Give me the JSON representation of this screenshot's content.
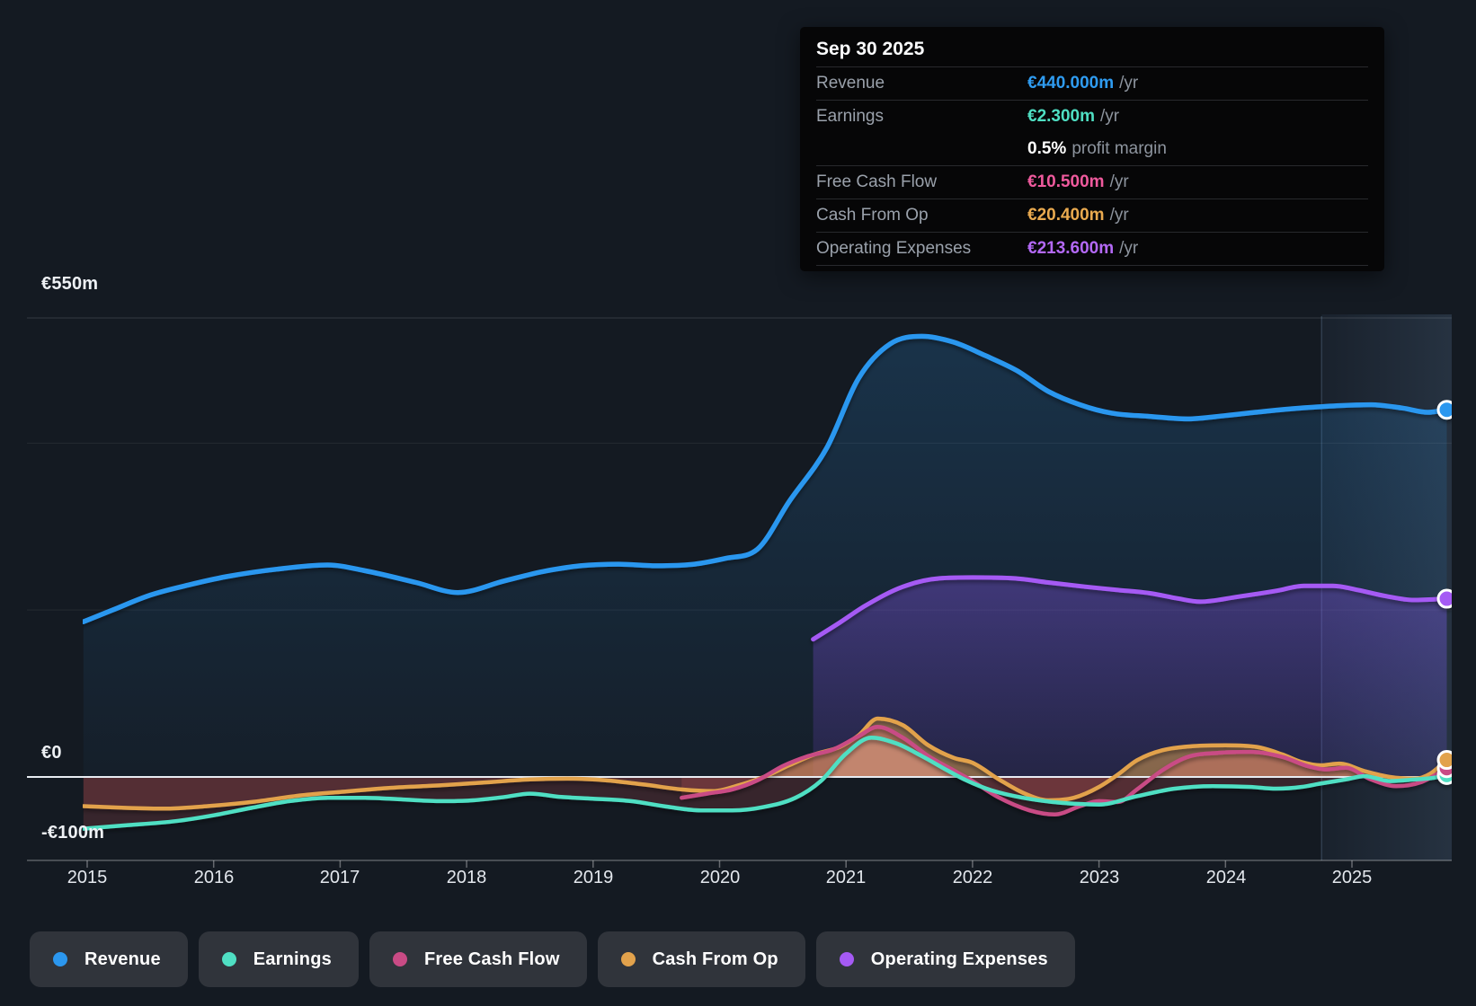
{
  "tooltip": {
    "date": "Sep 30 2025",
    "rows": [
      {
        "label": "Revenue",
        "value": "€440.000m",
        "suffix": "/yr",
        "color": "#2f9cf1"
      },
      {
        "label": "Earnings",
        "value": "€2.300m",
        "suffix": "/yr",
        "color": "#4fdfc3"
      },
      {
        "label": "",
        "value": "0.5%",
        "suffix": "profit margin",
        "color": "#ffffff"
      },
      {
        "label": "Free Cash Flow",
        "value": "€10.500m",
        "suffix": "/yr",
        "color": "#ef5a9d"
      },
      {
        "label": "Cash From Op",
        "value": "€20.400m",
        "suffix": "/yr",
        "color": "#eaaa4f"
      },
      {
        "label": "Operating Expenses",
        "value": "€213.600m",
        "suffix": "/yr",
        "color": "#b469f7"
      }
    ]
  },
  "axis": {
    "y_labels": [
      {
        "text": "€550m",
        "value": 550
      },
      {
        "text": "€0",
        "value": 0
      },
      {
        "text": "-€100m",
        "value": -100
      }
    ],
    "x_ticks": [
      "2015",
      "2016",
      "2017",
      "2018",
      "2019",
      "2020",
      "2021",
      "2022",
      "2023",
      "2024",
      "2025"
    ]
  },
  "legend": {
    "items": [
      {
        "label": "Revenue",
        "color": "#2b97ef"
      },
      {
        "label": "Earnings",
        "color": "#4fdfc3"
      },
      {
        "label": "Free Cash Flow",
        "color": "#c94b85"
      },
      {
        "label": "Cash From Op",
        "color": "#e2a24c"
      },
      {
        "label": "Operating Expenses",
        "color": "#a55af4"
      }
    ]
  },
  "chart_data": {
    "type": "area",
    "title": "Earnings and revenue history to Sep 30 2025",
    "x_unit": "year",
    "x_range": [
      2014.97,
      2025.78
    ],
    "ylim_m": [
      -100,
      550
    ],
    "gridline_values_m": [
      550,
      400,
      200
    ],
    "zero_line_m": 0,
    "bottom_line_m": -100,
    "highlight_band_start": 2024.76,
    "marker_date": "Sep 30 2025",
    "series": [
      {
        "name": "Revenue",
        "color": "#2b97ef",
        "end_value_m": 440.0,
        "points": [
          [
            2014.97,
            186
          ],
          [
            2015.2,
            200
          ],
          [
            2015.5,
            218
          ],
          [
            2015.8,
            230
          ],
          [
            2016.1,
            240
          ],
          [
            2016.5,
            249
          ],
          [
            2016.9,
            254
          ],
          [
            2017.2,
            247
          ],
          [
            2017.6,
            233
          ],
          [
            2017.93,
            221
          ],
          [
            2018.3,
            235
          ],
          [
            2018.6,
            246
          ],
          [
            2018.9,
            253
          ],
          [
            2019.2,
            255
          ],
          [
            2019.5,
            253
          ],
          [
            2019.8,
            255
          ],
          [
            2020.05,
            262
          ],
          [
            2020.3,
            273
          ],
          [
            2020.55,
            330
          ],
          [
            2020.85,
            395
          ],
          [
            2021.1,
            478
          ],
          [
            2021.35,
            519
          ],
          [
            2021.6,
            528
          ],
          [
            2021.85,
            521
          ],
          [
            2022.1,
            505
          ],
          [
            2022.35,
            487
          ],
          [
            2022.6,
            462
          ],
          [
            2022.85,
            446
          ],
          [
            2023.1,
            436
          ],
          [
            2023.4,
            432
          ],
          [
            2023.7,
            429
          ],
          [
            2024.0,
            433
          ],
          [
            2024.3,
            438
          ],
          [
            2024.6,
            442
          ],
          [
            2024.9,
            445
          ],
          [
            2025.15,
            446
          ],
          [
            2025.4,
            442
          ],
          [
            2025.6,
            437
          ],
          [
            2025.75,
            440
          ]
        ]
      },
      {
        "name": "Operating Expenses",
        "color": "#a55af4",
        "end_value_m": 213.6,
        "points": [
          [
            2020.74,
            165
          ],
          [
            2020.95,
            185
          ],
          [
            2021.15,
            205
          ],
          [
            2021.45,
            228
          ],
          [
            2021.74,
            238
          ],
          [
            2022.0,
            239
          ],
          [
            2022.33,
            238
          ],
          [
            2022.6,
            233
          ],
          [
            2022.89,
            228
          ],
          [
            2023.15,
            224
          ],
          [
            2023.41,
            220
          ],
          [
            2023.62,
            214
          ],
          [
            2023.8,
            210
          ],
          [
            2024.1,
            216
          ],
          [
            2024.4,
            223
          ],
          [
            2024.62,
            229
          ],
          [
            2024.85,
            229
          ],
          [
            2025.05,
            224
          ],
          [
            2025.26,
            217
          ],
          [
            2025.49,
            212
          ],
          [
            2025.75,
            213.6
          ]
        ]
      },
      {
        "name": "Cash From Op",
        "color": "#e2a24c",
        "end_value_m": 20.4,
        "points": [
          [
            2014.97,
            -35
          ],
          [
            2015.3,
            -37
          ],
          [
            2015.6,
            -38
          ],
          [
            2015.95,
            -35
          ],
          [
            2016.3,
            -30
          ],
          [
            2016.7,
            -22
          ],
          [
            2017.0,
            -18
          ],
          [
            2017.4,
            -13
          ],
          [
            2017.8,
            -10
          ],
          [
            2018.2,
            -6
          ],
          [
            2018.5,
            -3
          ],
          [
            2018.8,
            -2
          ],
          [
            2019.1,
            -4
          ],
          [
            2019.4,
            -9
          ],
          [
            2019.7,
            -15
          ],
          [
            2019.95,
            -17
          ],
          [
            2020.15,
            -10
          ],
          [
            2020.35,
            0
          ],
          [
            2020.55,
            14
          ],
          [
            2020.75,
            27
          ],
          [
            2020.95,
            36
          ],
          [
            2021.1,
            50
          ],
          [
            2021.25,
            70
          ],
          [
            2021.45,
            62
          ],
          [
            2021.65,
            38
          ],
          [
            2021.85,
            23
          ],
          [
            2022.0,
            17
          ],
          [
            2022.2,
            -2
          ],
          [
            2022.4,
            -19
          ],
          [
            2022.6,
            -28
          ],
          [
            2022.8,
            -25
          ],
          [
            2023.0,
            -12
          ],
          [
            2023.15,
            3
          ],
          [
            2023.3,
            20
          ],
          [
            2023.5,
            32
          ],
          [
            2023.75,
            37
          ],
          [
            2024.0,
            38
          ],
          [
            2024.25,
            36
          ],
          [
            2024.45,
            27
          ],
          [
            2024.6,
            18
          ],
          [
            2024.75,
            14
          ],
          [
            2024.9,
            16
          ],
          [
            2025.1,
            7
          ],
          [
            2025.3,
            0
          ],
          [
            2025.5,
            -2
          ],
          [
            2025.62,
            4
          ],
          [
            2025.75,
            20.4
          ]
        ]
      },
      {
        "name": "Free Cash Flow",
        "color": "#c94b85",
        "end_value_m": 10.5,
        "points": [
          [
            2019.7,
            -25
          ],
          [
            2019.9,
            -20
          ],
          [
            2020.1,
            -15
          ],
          [
            2020.3,
            -4
          ],
          [
            2020.5,
            13
          ],
          [
            2020.7,
            25
          ],
          [
            2020.9,
            33
          ],
          [
            2021.1,
            49
          ],
          [
            2021.25,
            60
          ],
          [
            2021.45,
            47
          ],
          [
            2021.65,
            25
          ],
          [
            2021.85,
            8
          ],
          [
            2022.0,
            -5
          ],
          [
            2022.2,
            -24
          ],
          [
            2022.45,
            -40
          ],
          [
            2022.65,
            -45
          ],
          [
            2022.85,
            -35
          ],
          [
            2023.0,
            -29
          ],
          [
            2023.15,
            -30
          ],
          [
            2023.3,
            -15
          ],
          [
            2023.5,
            8
          ],
          [
            2023.7,
            24
          ],
          [
            2023.95,
            29
          ],
          [
            2024.2,
            30
          ],
          [
            2024.45,
            24
          ],
          [
            2024.65,
            13
          ],
          [
            2024.8,
            9
          ],
          [
            2024.95,
            11
          ],
          [
            2025.15,
            -3
          ],
          [
            2025.35,
            -11
          ],
          [
            2025.55,
            -6
          ],
          [
            2025.75,
            10.5
          ]
        ]
      },
      {
        "name": "Earnings",
        "color": "#4fdfc3",
        "end_value_m": 2.3,
        "points": [
          [
            2014.97,
            -62
          ],
          [
            2015.3,
            -58
          ],
          [
            2015.7,
            -53
          ],
          [
            2016.0,
            -46
          ],
          [
            2016.3,
            -37
          ],
          [
            2016.6,
            -29
          ],
          [
            2016.9,
            -25
          ],
          [
            2017.2,
            -25
          ],
          [
            2017.5,
            -27
          ],
          [
            2017.8,
            -29
          ],
          [
            2018.05,
            -28
          ],
          [
            2018.3,
            -24
          ],
          [
            2018.5,
            -20
          ],
          [
            2018.75,
            -24
          ],
          [
            2019.0,
            -26
          ],
          [
            2019.3,
            -29
          ],
          [
            2019.6,
            -36
          ],
          [
            2019.85,
            -40
          ],
          [
            2020.1,
            -40
          ],
          [
            2020.35,
            -36
          ],
          [
            2020.6,
            -25
          ],
          [
            2020.8,
            -5
          ],
          [
            2021.0,
            28
          ],
          [
            2021.2,
            47
          ],
          [
            2021.4,
            40
          ],
          [
            2021.6,
            25
          ],
          [
            2021.8,
            8
          ],
          [
            2021.95,
            -4
          ],
          [
            2022.15,
            -16
          ],
          [
            2022.4,
            -25
          ],
          [
            2022.7,
            -31
          ],
          [
            2023.0,
            -33
          ],
          [
            2023.3,
            -23
          ],
          [
            2023.6,
            -14
          ],
          [
            2023.9,
            -11
          ],
          [
            2024.2,
            -12
          ],
          [
            2024.4,
            -14
          ],
          [
            2024.6,
            -12
          ],
          [
            2024.75,
            -8
          ],
          [
            2024.95,
            -3
          ],
          [
            2025.1,
            1
          ],
          [
            2025.3,
            -5
          ],
          [
            2025.5,
            -3
          ],
          [
            2025.65,
            -1
          ],
          [
            2025.75,
            2.3
          ]
        ]
      }
    ]
  }
}
